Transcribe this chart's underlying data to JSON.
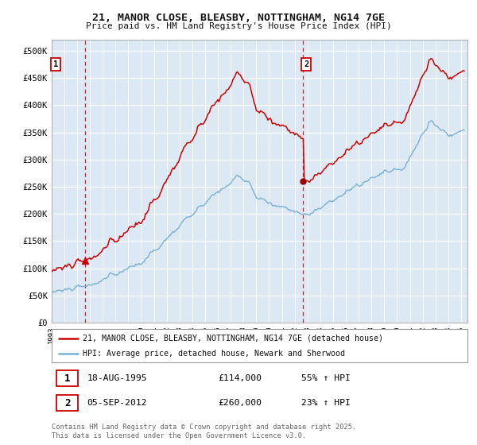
{
  "title_line1": "21, MANOR CLOSE, BLEASBY, NOTTINGHAM, NG14 7GE",
  "title_line2": "Price paid vs. HM Land Registry's House Price Index (HPI)",
  "ytick_labels": [
    "£0",
    "£50K",
    "£100K",
    "£150K",
    "£200K",
    "£250K",
    "£300K",
    "£350K",
    "£400K",
    "£450K",
    "£500K"
  ],
  "legend_entry1": "21, MANOR CLOSE, BLEASBY, NOTTINGHAM, NG14 7GE (detached house)",
  "legend_entry2": "HPI: Average price, detached house, Newark and Sherwood",
  "sale1_date": "18-AUG-1995",
  "sale1_price": "£114,000",
  "sale1_hpi": "55% ↑ HPI",
  "sale2_date": "05-SEP-2012",
  "sale2_price": "£260,000",
  "sale2_hpi": "23% ↑ HPI",
  "copyright_text": "Contains HM Land Registry data © Crown copyright and database right 2025.\nThis data is licensed under the Open Government Licence v3.0.",
  "property_color": "#cc0000",
  "hpi_color": "#7aafd4",
  "background_color": "#ffffff",
  "plot_bg_color": "#dce9f5",
  "grid_color": "#ffffff",
  "vline_color": "#cc0000",
  "sale1_x_year": 1995.62,
  "sale2_x_year": 2012.67,
  "sale1_price_val": 114000,
  "sale2_price_val": 260000,
  "ylim": [
    0,
    520000
  ],
  "xlim_start": 1993.0,
  "xlim_end": 2025.5
}
